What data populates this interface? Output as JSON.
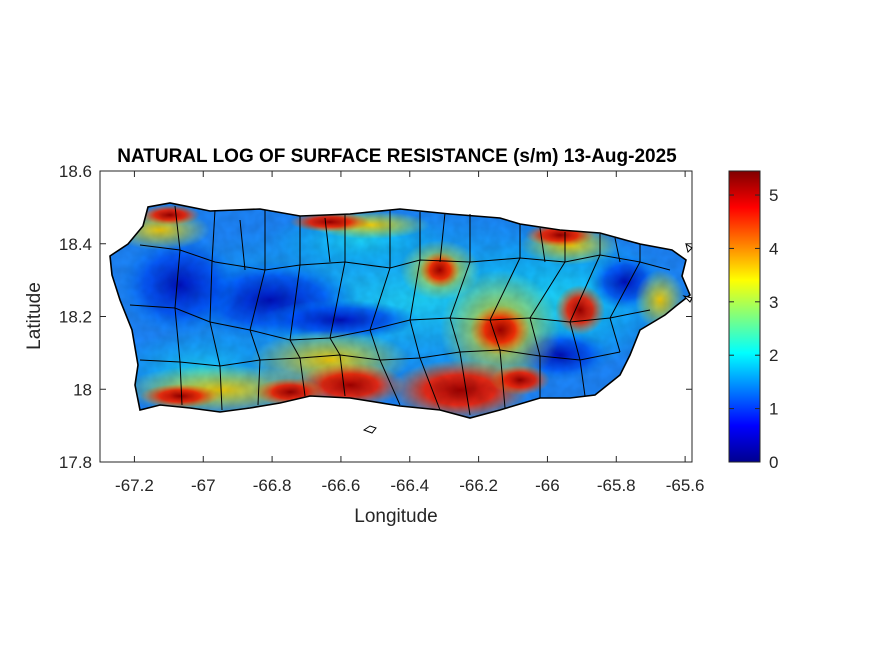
{
  "title": "NATURAL LOG OF SURFACE RESISTANCE (s/m) 13-Aug-2025",
  "xlabel": "Longitude",
  "ylabel": "Latitude",
  "x_ticks": [
    "-67.2",
    "-67",
    "-66.8",
    "-66.6",
    "-66.4",
    "-66.2",
    "-66",
    "-65.8",
    "-65.6"
  ],
  "y_ticks": [
    "18.6",
    "18.4",
    "18.2",
    "18",
    "17.8"
  ],
  "colorbar_ticks": [
    "5",
    "4",
    "3",
    "2",
    "1",
    "0"
  ],
  "colormap": "jet",
  "colors": {
    "low": "#00008f",
    "mid": "#7fff7f",
    "high": "#800000",
    "boundary": "#000000"
  },
  "chart_data": {
    "type": "heatmap",
    "title": "NATURAL LOG OF SURFACE RESISTANCE (s/m) 13-Aug-2025",
    "xlabel": "Longitude",
    "ylabel": "Latitude",
    "xlim": [
      -67.3,
      -65.58
    ],
    "ylim": [
      17.8,
      18.6
    ],
    "clim": [
      0,
      5.45
    ],
    "grid": false,
    "region": "Puerto Rico (municipality boundaries)",
    "value_description": "ln(surface resistance) ~0.5-5.4; high (red) along south coast near -66.3..-66.2 and north coast, low (blue) in central interior near -66.8 and east near -65.8"
  }
}
